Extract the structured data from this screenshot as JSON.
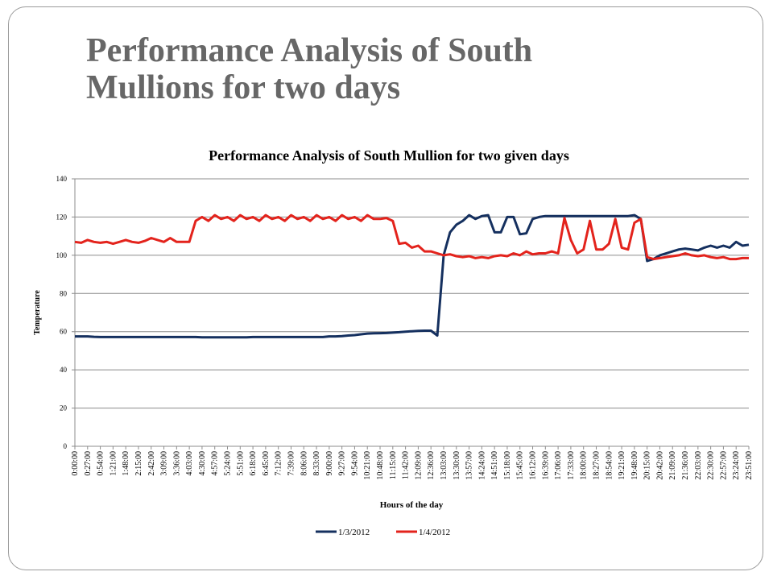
{
  "slide_title": "Performance Analysis of South Mullions for two days",
  "chart_data": {
    "type": "line",
    "title": "Performance Analysis of South Mullion for two given days",
    "x_label": "Hours of the day",
    "y_label": "Temperature",
    "ylim": [
      0,
      140
    ],
    "yticks": [
      0,
      20,
      40,
      60,
      80,
      100,
      120,
      140
    ],
    "grid": true,
    "legend": "bottom",
    "categories": [
      "0:00:00",
      null,
      "0:27:00",
      null,
      "0:54:00",
      null,
      "1:21:00",
      null,
      "1:48:00",
      null,
      "2:15:00",
      null,
      "2:42:00",
      null,
      "3:09:00",
      null,
      "3:36:00",
      null,
      "4:03:00",
      null,
      "4:30:00",
      null,
      "4:57:00",
      null,
      "5:24:00",
      null,
      "5:51:00",
      null,
      "6:18:00",
      null,
      "6:45:00",
      null,
      "7:12:00",
      null,
      "7:39:00",
      null,
      "8:06:00",
      null,
      "8:33:00",
      null,
      "9:00:00",
      null,
      "9:27:00",
      null,
      "9:54:00",
      null,
      "10:21:00",
      null,
      "10:48:00",
      null,
      "11:15:00",
      null,
      "11:42:00",
      null,
      "12:09:00",
      null,
      "12:36:00",
      null,
      "13:03:00",
      null,
      "13:30:00",
      null,
      "13:57:00",
      null,
      "14:24:00",
      null,
      "14:51:00",
      null,
      "15:18:00",
      null,
      "15:45:00",
      null,
      "16:12:00",
      null,
      "16:39:00",
      null,
      "17:06:00",
      null,
      "17:33:00",
      null,
      "18:00:00",
      null,
      "18:27:00",
      null,
      "18:54:00",
      null,
      "19:21:00",
      null,
      "19:48:00",
      null,
      "20:15:00",
      null,
      "20:42:00",
      null,
      "21:09:00",
      null,
      "21:36:00",
      null,
      "22:03:00",
      null,
      "22:30:00",
      null,
      "22:57:00",
      null,
      "23:24:00",
      null,
      "23:51:00"
    ],
    "series": [
      {
        "name": "1/3/2012",
        "color": "#15305f",
        "values": [
          57.5,
          57.5,
          57.5,
          57.3,
          57.2,
          57.2,
          57.2,
          57.2,
          57.2,
          57.2,
          57.2,
          57.2,
          57.2,
          57.2,
          57.2,
          57.2,
          57.2,
          57.2,
          57.2,
          57.2,
          57.0,
          57.0,
          57.0,
          57.0,
          57.0,
          57.0,
          57.0,
          57.0,
          57.2,
          57.2,
          57.2,
          57.2,
          57.2,
          57.2,
          57.2,
          57.2,
          57.2,
          57.2,
          57.2,
          57.2,
          57.5,
          57.5,
          57.7,
          58.0,
          58.2,
          58.6,
          59.0,
          59.1,
          59.2,
          59.3,
          59.5,
          59.7,
          60.0,
          60.2,
          60.4,
          60.5,
          60.5,
          58,
          100,
          112,
          116,
          118,
          121,
          119,
          120.5,
          121,
          112,
          112,
          120,
          120,
          111,
          111.5,
          119,
          120,
          120.5,
          120.5,
          120.5,
          120.5,
          120.5,
          120.5,
          120.5,
          120.5,
          120.5,
          120.5,
          120.5,
          120.5,
          120.5,
          120.5,
          121,
          119,
          97,
          98,
          100,
          101,
          102,
          103,
          103.5,
          103,
          102.5,
          104,
          105,
          104,
          105,
          104,
          107,
          105,
          105.5
        ]
      },
      {
        "name": "1/4/2012",
        "color": "#e3231c",
        "values": [
          107,
          106.5,
          108,
          107,
          106.5,
          107,
          106,
          107,
          108,
          107,
          106.5,
          107.5,
          109,
          108,
          107,
          109,
          107,
          107,
          107,
          118,
          120,
          118,
          121,
          119,
          120,
          118,
          121,
          119,
          120,
          118,
          121,
          119,
          120,
          118,
          121,
          119,
          120,
          118,
          121,
          119,
          120,
          118,
          121,
          119,
          120,
          118,
          121,
          119,
          119,
          119.5,
          118,
          106,
          106.5,
          104,
          105,
          102,
          102,
          101,
          100,
          100.5,
          99.5,
          99,
          99.5,
          98.5,
          99,
          98.5,
          99.5,
          100,
          99.5,
          101,
          100,
          102,
          100.5,
          101,
          101,
          102,
          101,
          119.5,
          108,
          101,
          103,
          118,
          103,
          103,
          106,
          119,
          104,
          103,
          117,
          119,
          99,
          98,
          98.5,
          99,
          99.5,
          100,
          101,
          100,
          99.5,
          100,
          99,
          98.5,
          99,
          98,
          98,
          98.5,
          98.5
        ]
      }
    ]
  }
}
